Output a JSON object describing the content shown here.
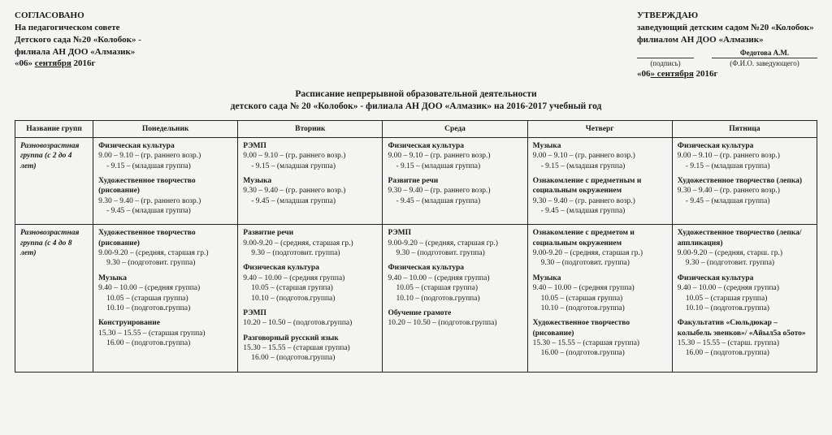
{
  "header": {
    "left": {
      "l1": "СОГЛАСОВАНО",
      "l2": "На педагогическом совете",
      "l3": "Детского сада №20 «Колобок» -",
      "l4": "филиала АН ДОО «Алмазик»",
      "l5_pre": "«06» ",
      "l5_u": "сентября",
      "l5_post": " 2016г"
    },
    "right": {
      "l1": "УТВЕРЖДАЮ",
      "l2": "заведующий детским садом №20 «Колобок»",
      "l3": "филиалом АН ДОО «Алмазик»",
      "sig_name": "Федотова А.М.",
      "sig_cap1": "(подпись)",
      "sig_cap2": "(Ф.И.О. заведующего)",
      "l5_pre": "«06",
      "l5_u": "» сентября",
      "l5_post": " 2016г"
    }
  },
  "title": {
    "l1": "Расписание непрерывной образовательной деятельности",
    "l2": "детского сада № 20 «Колобок» - филиала АН ДОО «Алмазик» на 2016-2017 учебный год"
  },
  "columns": [
    "Название групп",
    "Понедельник",
    "Вторник",
    "Среда",
    "Четверг",
    "Пятница"
  ],
  "rows": [
    {
      "group": "Разновозрастная группа (с 2 до 4 лет)",
      "cells": [
        [
          {
            "subj": "Физическая культура",
            "lines": [
              "9.00 – 9.10 – (гр. раннего возр.)",
              "- 9.15 – (младшая группа)"
            ]
          },
          {
            "subj": "Художественное творчество (рисование)",
            "lines": [
              "9.30 – 9.40 – (гр. раннего возр.)",
              "- 9.45 – (младшая группа)"
            ]
          }
        ],
        [
          {
            "subj": "РЭМП",
            "lines": [
              "9.00 – 9.10 – (гр. раннего возр.)",
              "- 9.15 – (младшая группа)"
            ]
          },
          {
            "subj": "Музыка",
            "lines": [
              "9.30 – 9.40 – (гр. раннего возр.)",
              "- 9.45 – (младшая группа)"
            ]
          }
        ],
        [
          {
            "subj": "Физическая культура",
            "lines": [
              "9.00 – 9.10 – (гр. раннего возр.)",
              "- 9.15 – (младшая группа)"
            ]
          },
          {
            "subj": "Развитие речи",
            "lines": [
              "9.30 – 9.40 – (гр. раннего возр.)",
              "- 9.45 – (младшая группа)"
            ]
          }
        ],
        [
          {
            "subj": "Музыка",
            "lines": [
              "9.00 – 9.10 – (гр. раннего возр.)",
              "- 9.15 – (младшая группа)"
            ]
          },
          {
            "subj": "Ознакомление с предметным и социальным окружением",
            "lines": [
              "9.30 – 9.40 – (гр. раннего возр.)",
              "- 9.45 – (младшая группа)"
            ]
          }
        ],
        [
          {
            "subj": "Физическая культура",
            "lines": [
              "9.00 – 9.10 – (гр. раннего возр.)",
              "- 9.15 – (младшая группа)"
            ]
          },
          {
            "subj": "Художественное творчество (лепка)",
            "lines": [
              "9.30 – 9.40 – (гр. раннего возр.)",
              "- 9.45 – (младшая группа)"
            ]
          }
        ]
      ]
    },
    {
      "group": "Разновозрастная группа (с 4 до 8 лет)",
      "cells": [
        [
          {
            "subj": "Художественное творчество (рисование)",
            "lines": [
              "9.00-9.20 – (средняя, старшая гр.)",
              "9.30 – (подготовит. группа)"
            ]
          },
          {
            "subj": "Музыка",
            "lines": [
              "9.40 – 10.00 – (средняя группа)",
              "10.05 – (старшая группа)",
              "10.10 – (подготов.группа)"
            ]
          },
          {
            "subj": "Конструирование",
            "lines": [
              "15.30 – 15.55 – (старшая группа)",
              "16.00 – (подготов.группа)"
            ]
          }
        ],
        [
          {
            "subj": "Развитие речи",
            "lines": [
              "9.00-9.20 – (средняя, старшая гр.)",
              "9.30 – (подготовит. группа)"
            ]
          },
          {
            "subj": "Физическая культура",
            "lines": [
              "9.40 – 10.00 – (средняя группа)",
              "10.05 – (старшая группа)",
              "10.10 – (подготов.группа)"
            ]
          },
          {
            "subj": "РЭМП",
            "lines": [
              "10.20 – 10.50 – (подготов.группа)"
            ]
          },
          {
            "subj": "Разговорный русский язык",
            "lines": [
              "15.30 – 15.55 – (старшая группа)",
              "16.00 – (подготов.группа)"
            ]
          }
        ],
        [
          {
            "subj": "РЭМП",
            "lines": [
              "9.00-9.20 – (средняя, старшая гр.)",
              "9.30 – (подготовит. группа)"
            ]
          },
          {
            "subj": "Физическая культура",
            "lines": [
              "9.40 – 10.00 – (средняя группа)",
              "10.05 – (старшая группа)",
              "10.10 – (подготов.группа)"
            ]
          },
          {
            "subj": "Обучение грамоте",
            "lines": [
              "10.20 – 10.50 – (подготов.группа)"
            ]
          }
        ],
        [
          {
            "subj": "Ознакомление с предметом и социальным окружением",
            "lines": [
              "9.00-9.20 – (средняя, старшая гр.)",
              "9.30 – (подготовит. группа)"
            ]
          },
          {
            "subj": "Музыка",
            "lines": [
              "9.40 – 10.00 – (средняя группа)",
              "10.05 – (старшая группа)",
              "10.10 – (подготов.группа)"
            ]
          },
          {
            "subj": "Художественное творчество (рисование)",
            "lines": [
              "15.30 – 15.55 – (старшая группа)",
              "16.00 – (подготов.группа)"
            ]
          }
        ],
        [
          {
            "subj": "Художественное творчество (лепка/аппликация)",
            "lines": [
              "9.00-9.20 – (средняя, старш. гр.)",
              "9.30 – (подготовит. группа)"
            ]
          },
          {
            "subj": "Физическая культура",
            "lines": [
              "9.40 – 10.00 – (средняя группа)",
              "10.05 – (старшая группа)",
              "10.10 – (подготов.группа)"
            ]
          },
          {
            "subj": "Факультатив «Сюльдюкар – колыбель эвенков»/ «Айыл5а о5ото»",
            "lines": [
              "15.30 – 15.55 – (старш. группа)",
              "16.00 – (подготов.группа)"
            ]
          }
        ]
      ]
    }
  ]
}
